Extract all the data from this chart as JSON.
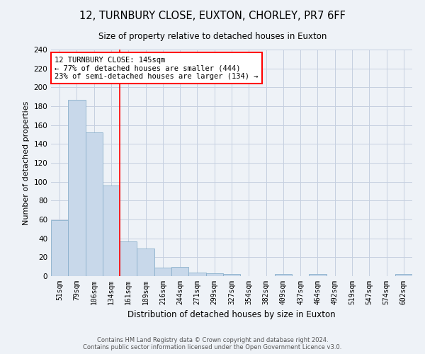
{
  "title": "12, TURNBURY CLOSE, EUXTON, CHORLEY, PR7 6FF",
  "subtitle": "Size of property relative to detached houses in Euxton",
  "xlabel": "Distribution of detached houses by size in Euxton",
  "ylabel": "Number of detached properties",
  "bar_color": "#c8d8ea",
  "bar_edge_color": "#8ab0cc",
  "categories": [
    "51sqm",
    "79sqm",
    "106sqm",
    "134sqm",
    "161sqm",
    "189sqm",
    "216sqm",
    "244sqm",
    "271sqm",
    "299sqm",
    "327sqm",
    "354sqm",
    "382sqm",
    "409sqm",
    "437sqm",
    "464sqm",
    "492sqm",
    "519sqm",
    "547sqm",
    "574sqm",
    "602sqm"
  ],
  "values": [
    59,
    187,
    152,
    96,
    37,
    29,
    9,
    10,
    4,
    3,
    2,
    0,
    0,
    2,
    0,
    2,
    0,
    0,
    0,
    0,
    2
  ],
  "ylim": [
    0,
    240
  ],
  "yticks": [
    0,
    20,
    40,
    60,
    80,
    100,
    120,
    140,
    160,
    180,
    200,
    220,
    240
  ],
  "vline_x": 3.5,
  "annotation_text": "12 TURNBURY CLOSE: 145sqm\n← 77% of detached houses are smaller (444)\n23% of semi-detached houses are larger (134) →",
  "annotation_box_color": "white",
  "annotation_box_edge": "red",
  "vline_color": "red",
  "bg_color": "#eef2f7",
  "grid_color": "#c5cfe0",
  "footer": "Contains HM Land Registry data © Crown copyright and database right 2024.\nContains public sector information licensed under the Open Government Licence v3.0.",
  "title_fontsize": 10.5,
  "subtitle_fontsize": 8.5,
  "ylabel_fontsize": 8,
  "xlabel_fontsize": 8.5,
  "tick_fontsize": 7,
  "annot_fontsize": 7.5,
  "footer_fontsize": 6
}
